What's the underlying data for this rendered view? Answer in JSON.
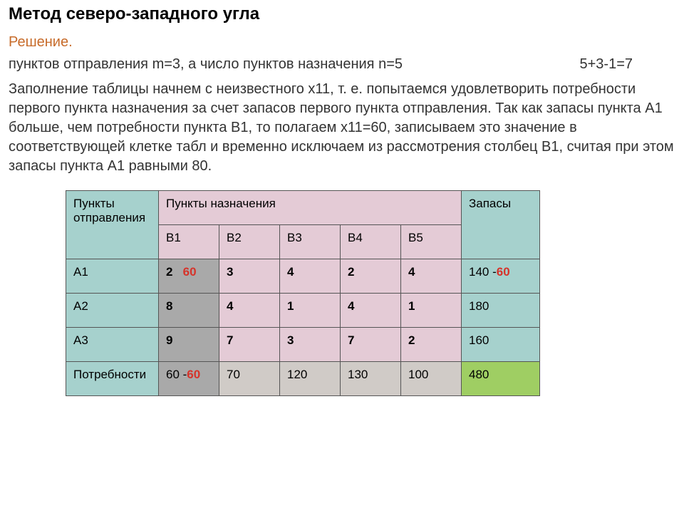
{
  "title": "Метод северо-западного угла",
  "solution_label": "Решение.",
  "params_text": "пунктов отправления m=3, а число пунктов назначения n=5",
  "formula_text": "5+3-1=7",
  "description": "Заполнение таблицы начнем с неизвестного x11, т. е. попытаемся удовлетворить потребности первого пункта назначения за счет запасов первого пункта отправления. Так как запасы пункта A1 больше, чем потребности пункта B1, то полагаем x11=60, записываем это значение в соответствующей клетке табл и временно исключаем из рассмотрения столбец B1, считая при этом запасы пункта A1 равными 80.",
  "table": {
    "hdr_origin": "Пункты отправления",
    "hdr_dest": "Пункты назначения",
    "hdr_stock": "Запасы",
    "dest_cols": [
      "B1",
      "B2",
      "B3",
      "B4",
      "B5"
    ],
    "rows": [
      {
        "origin": "A1",
        "b1_cost": "2",
        "b1_alloc": "60",
        "cells": [
          "3",
          "4",
          "2",
          "4"
        ],
        "stock_base": "140 -",
        "stock_minus": "60"
      },
      {
        "origin": "A2",
        "b1_cost": "8",
        "b1_alloc": "",
        "cells": [
          "4",
          "1",
          "4",
          "1"
        ],
        "stock_base": "180",
        "stock_minus": ""
      },
      {
        "origin": "A3",
        "b1_cost": "9",
        "b1_alloc": "",
        "cells": [
          "7",
          "3",
          "7",
          "2"
        ],
        "stock_base": "160",
        "stock_minus": ""
      }
    ],
    "needs_label": "Потребности",
    "needs_b1_base": "60 -",
    "needs_b1_minus": "60",
    "needs_cells": [
      "70",
      "120",
      "130",
      "100"
    ],
    "total": "480"
  },
  "colors": {
    "teal": "#a6d1cd",
    "pink": "#e4cbd6",
    "grey": "#a9a9a9",
    "needs_bg": "#d0cbc7",
    "green": "#9fce63",
    "red": "#d6332a",
    "solution": "#c76b2a"
  }
}
